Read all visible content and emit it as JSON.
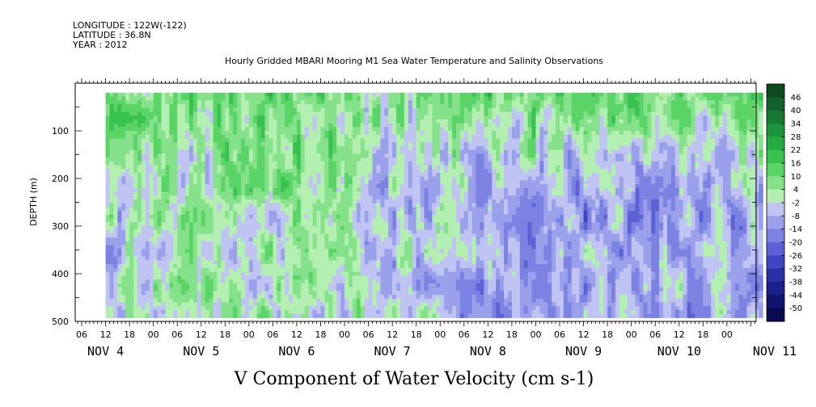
{
  "header": {
    "longitude": "LONGITUDE : 122W(-122)",
    "latitude": "LATITUDE : 36.8N",
    "year": "YEAR : 2012",
    "subtitle": "Hourly Gridded MBARI Mooring M1 Sea Water Temperature and Salinity Observations"
  },
  "chart_data": {
    "type": "heatmap",
    "title": "V Component of Water Velocity (cm s-1)",
    "xlabel": "",
    "ylabel": "DEPTH (m)",
    "x_hour_ticks": [
      "06",
      "12",
      "18",
      "00",
      "06",
      "12",
      "18",
      "00",
      "06",
      "12",
      "18",
      "00",
      "06",
      "12",
      "18",
      "00",
      "06",
      "12",
      "18",
      "00",
      "06",
      "12",
      "18",
      "00",
      "06",
      "12",
      "18",
      "00"
    ],
    "x_day_labels": [
      "NOV 4",
      "NOV 5",
      "NOV 6",
      "NOV 7",
      "NOV 8",
      "NOV 9",
      "NOV 10",
      "NOV 11"
    ],
    "y_ticks": [
      100,
      200,
      300,
      400,
      500
    ],
    "ylim": [
      500,
      0
    ],
    "colorbar": {
      "labels": [
        "46",
        "40",
        "34",
        "28",
        "22",
        "16",
        "10",
        "4",
        "-2",
        "-8",
        "-14",
        "-20",
        "-26",
        "-32",
        "-38",
        "-44",
        "-50"
      ],
      "colors": [
        "#0c4a1f",
        "#12602a",
        "#177a33",
        "#1c943b",
        "#25ab44",
        "#39c251",
        "#5ad466",
        "#86e28a",
        "#b4efb2",
        "#c0c4f2",
        "#9aa0ea",
        "#7b82e2",
        "#5c62d4",
        "#3f45c0",
        "#2a30a6",
        "#1b208a",
        "#10146c",
        "#090b50"
      ]
    },
    "cells_note": "",
    "day_profiles": [
      {
        "day": "NOV 4",
        "surface": 10,
        "mid": -4,
        "deep": -6
      },
      {
        "day": "NOV 5",
        "surface": 9,
        "mid": 2,
        "deep": 3
      },
      {
        "day": "NOV 6",
        "surface": 13,
        "mid": 4,
        "deep": 1
      },
      {
        "day": "NOV 7",
        "surface": 7,
        "mid": -6,
        "deep": 0
      },
      {
        "day": "NOV 8",
        "surface": 14,
        "mid": -12,
        "deep": -14
      },
      {
        "day": "NOV 9",
        "surface": 12,
        "mid": -13,
        "deep": -10
      },
      {
        "day": "NOV 10",
        "surface": 9,
        "mid": -9,
        "deep": -10
      }
    ]
  }
}
